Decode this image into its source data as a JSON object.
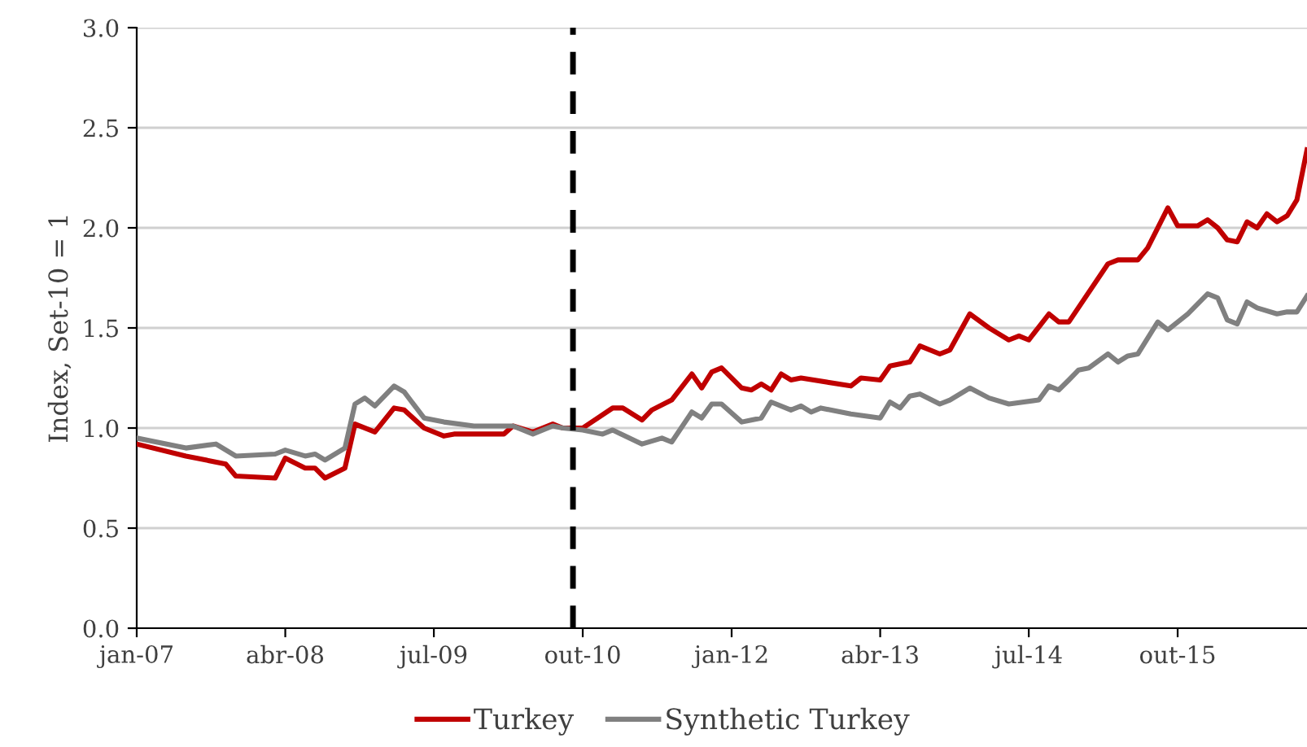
{
  "chart_data": {
    "type": "line",
    "ylabel": "Index, Set-10 = 1",
    "xlim": [
      "2007-01",
      "2016-11"
    ],
    "ylim": [
      0,
      3
    ],
    "xticks": [
      {
        "value": "2007-01",
        "label": "jan-07"
      },
      {
        "value": "2008-04",
        "label": "abr-08"
      },
      {
        "value": "2009-07",
        "label": "jul-09"
      },
      {
        "value": "2010-10",
        "label": "out-10"
      },
      {
        "value": "2012-01",
        "label": "jan-12"
      },
      {
        "value": "2013-04",
        "label": "abr-13"
      },
      {
        "value": "2014-07",
        "label": "jul-14"
      },
      {
        "value": "2015-10",
        "label": "out-15"
      }
    ],
    "yticks": [
      {
        "value": 0,
        "label": "0.0"
      },
      {
        "value": 0.5,
        "label": "0.5"
      },
      {
        "value": 1,
        "label": "1.0"
      },
      {
        "value": 1.5,
        "label": "1.5"
      },
      {
        "value": 2,
        "label": "2.0"
      },
      {
        "value": 2.5,
        "label": "2.5"
      },
      {
        "value": 3,
        "label": "3.0"
      }
    ],
    "grid": "y",
    "legend": "bottom",
    "marker": "none",
    "line_style": "solid",
    "ref_lines": [
      {
        "axis": "x",
        "value": "2010-09",
        "label": null,
        "color": "#000000",
        "line_style": "dashed"
      }
    ],
    "series": [
      {
        "name": "Turkey",
        "color": "#c00000",
        "x": [
          "2007-01",
          "2007-06",
          "2007-10",
          "2007-11",
          "2008-03",
          "2008-04",
          "2008-06",
          "2008-07",
          "2008-08",
          "2008-10",
          "2008-11",
          "2009-01",
          "2009-03",
          "2009-04",
          "2009-06",
          "2009-08",
          "2009-09",
          "2010-02",
          "2010-03",
          "2010-05",
          "2010-07",
          "2010-08",
          "2010-10",
          "2011-01",
          "2011-02",
          "2011-04",
          "2011-05",
          "2011-07",
          "2011-09",
          "2011-10",
          "2011-11",
          "2011-12",
          "2012-02",
          "2012-03",
          "2012-04",
          "2012-05",
          "2012-06",
          "2012-07",
          "2012-08",
          "2013-01",
          "2013-02",
          "2013-04",
          "2013-05",
          "2013-07",
          "2013-08",
          "2013-10",
          "2013-11",
          "2014-01",
          "2014-03",
          "2014-05",
          "2014-06",
          "2014-07",
          "2014-09",
          "2014-10",
          "2014-11",
          "2015-03",
          "2015-04",
          "2015-06",
          "2015-07",
          "2015-09",
          "2015-10",
          "2015-12",
          "2016-01",
          "2016-02",
          "2016-03",
          "2016-04",
          "2016-05",
          "2016-06",
          "2016-07",
          "2016-08",
          "2016-09",
          "2016-10",
          "2016-11"
        ],
        "values": [
          0.92,
          0.86,
          0.82,
          0.76,
          0.75,
          0.85,
          0.8,
          0.8,
          0.75,
          0.8,
          1.02,
          0.98,
          1.1,
          1.09,
          1.0,
          0.96,
          0.97,
          0.97,
          1.01,
          0.98,
          1.02,
          1.0,
          1.0,
          1.1,
          1.1,
          1.04,
          1.09,
          1.14,
          1.27,
          1.2,
          1.28,
          1.3,
          1.2,
          1.19,
          1.22,
          1.19,
          1.27,
          1.24,
          1.25,
          1.21,
          1.25,
          1.24,
          1.31,
          1.33,
          1.41,
          1.37,
          1.39,
          1.57,
          1.5,
          1.44,
          1.46,
          1.44,
          1.57,
          1.53,
          1.53,
          1.82,
          1.84,
          1.84,
          1.9,
          2.1,
          2.01,
          2.01,
          2.04,
          2.0,
          1.94,
          1.93,
          2.03,
          2.0,
          2.07,
          2.03,
          2.06,
          2.14,
          2.39
        ]
      },
      {
        "name": "Synthetic Turkey",
        "color": "#808080",
        "x": [
          "2007-01",
          "2007-06",
          "2007-09",
          "2007-11",
          "2008-03",
          "2008-04",
          "2008-06",
          "2008-07",
          "2008-08",
          "2008-10",
          "2008-11",
          "2008-12",
          "2009-01",
          "2009-03",
          "2009-04",
          "2009-06",
          "2009-08",
          "2009-11",
          "2010-03",
          "2010-05",
          "2010-07",
          "2010-08",
          "2010-10",
          "2010-12",
          "2011-01",
          "2011-04",
          "2011-06",
          "2011-07",
          "2011-09",
          "2011-10",
          "2011-11",
          "2011-12",
          "2012-02",
          "2012-03",
          "2012-04",
          "2012-05",
          "2012-07",
          "2012-08",
          "2012-09",
          "2012-10",
          "2013-01",
          "2013-04",
          "2013-05",
          "2013-06",
          "2013-07",
          "2013-08",
          "2013-10",
          "2013-11",
          "2014-01",
          "2014-03",
          "2014-05",
          "2014-08",
          "2014-09",
          "2014-10",
          "2014-11",
          "2014-12",
          "2015-01",
          "2015-03",
          "2015-04",
          "2015-05",
          "2015-06",
          "2015-08",
          "2015-09",
          "2015-11",
          "2016-01",
          "2016-02",
          "2016-03",
          "2016-04",
          "2016-05",
          "2016-06",
          "2016-08",
          "2016-09",
          "2016-10",
          "2016-11"
        ],
        "values": [
          0.95,
          0.9,
          0.92,
          0.86,
          0.87,
          0.89,
          0.86,
          0.87,
          0.84,
          0.9,
          1.12,
          1.15,
          1.11,
          1.21,
          1.18,
          1.05,
          1.03,
          1.01,
          1.01,
          0.97,
          1.01,
          1.0,
          0.99,
          0.97,
          0.99,
          0.92,
          0.95,
          0.93,
          1.08,
          1.05,
          1.12,
          1.12,
          1.03,
          1.04,
          1.05,
          1.13,
          1.09,
          1.11,
          1.08,
          1.1,
          1.07,
          1.05,
          1.13,
          1.1,
          1.16,
          1.17,
          1.12,
          1.14,
          1.2,
          1.15,
          1.12,
          1.14,
          1.21,
          1.19,
          1.24,
          1.29,
          1.3,
          1.37,
          1.33,
          1.36,
          1.37,
          1.53,
          1.49,
          1.57,
          1.67,
          1.65,
          1.54,
          1.52,
          1.63,
          1.6,
          1.57,
          1.58,
          1.58,
          1.66
        ]
      }
    ]
  }
}
